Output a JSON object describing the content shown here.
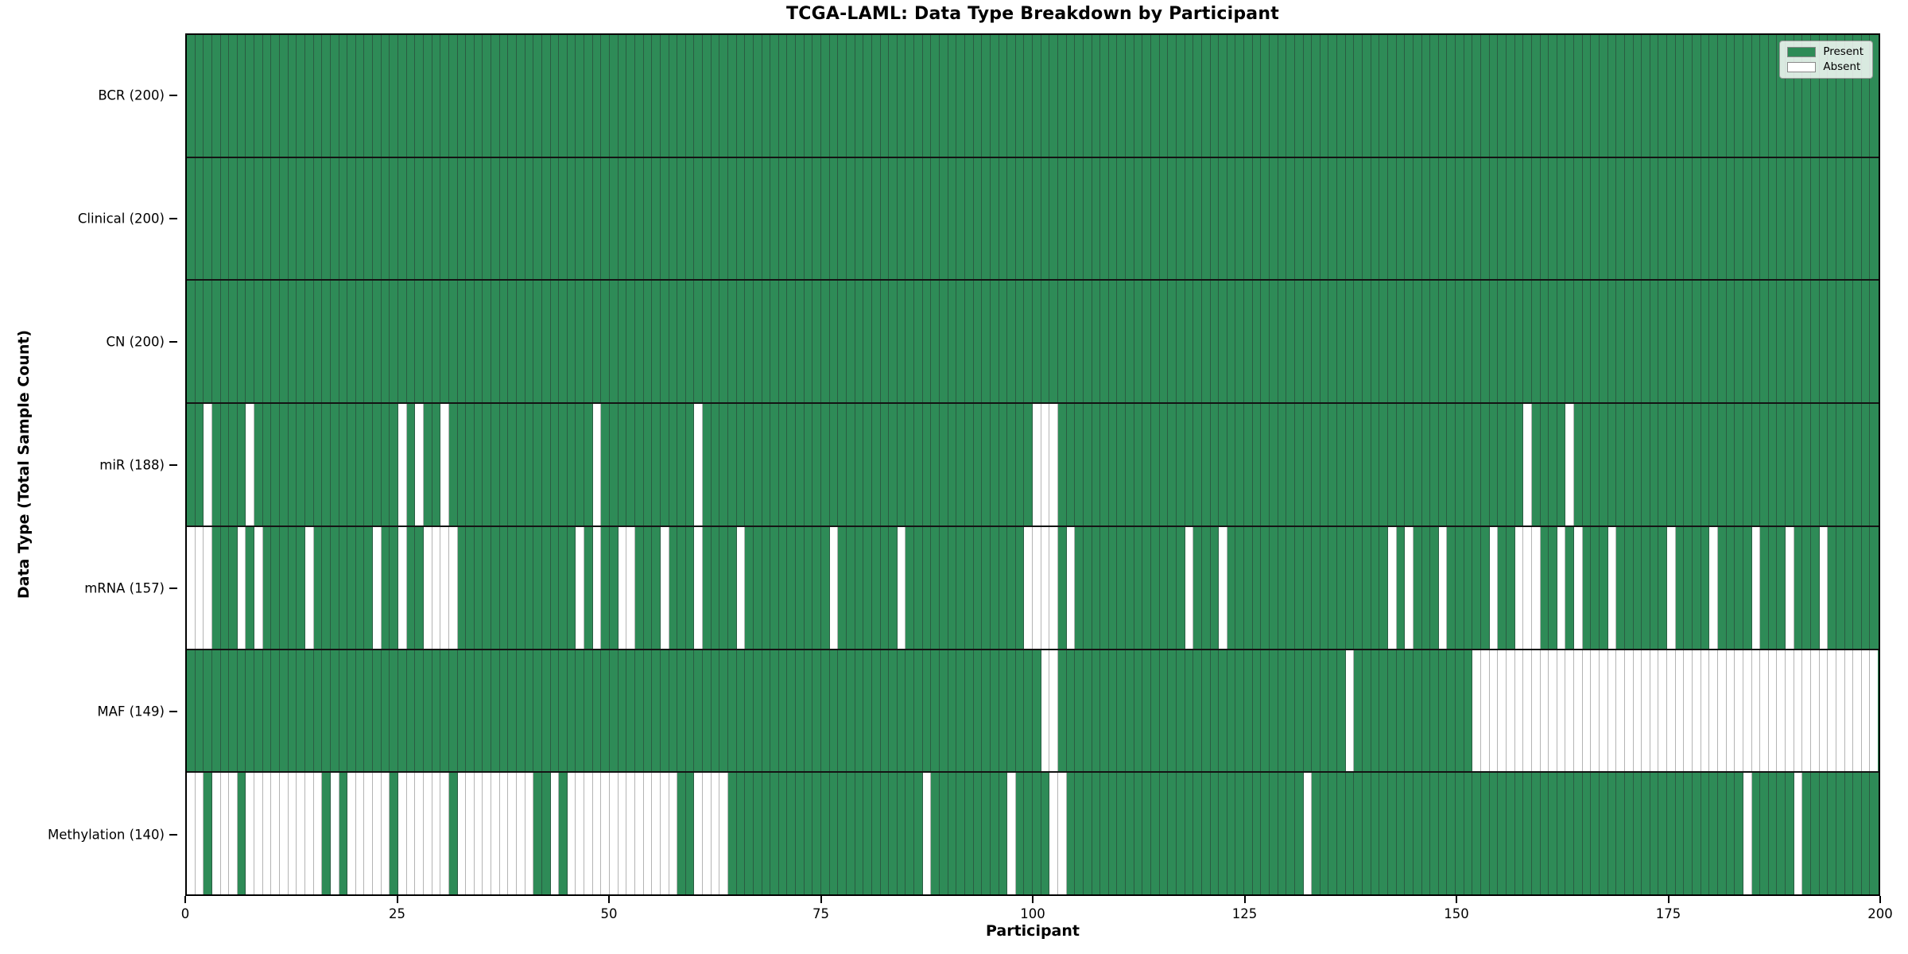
{
  "figure": {
    "title": "TCGA-LAML: Data Type Breakdown by Participant",
    "xlabel": "Participant",
    "ylabel": "Data Type (Total Sample Count)"
  },
  "legend": {
    "entries": [
      {
        "label": "Present",
        "color": "#2e8b57"
      },
      {
        "label": "Absent",
        "color": "#ffffff"
      }
    ]
  },
  "colors": {
    "present": "#2e8b57",
    "absent": "#ffffff",
    "edge_present": "#2a5c42",
    "edge_absent": "#b4b4b4",
    "row_divider": "#141414",
    "plot_border": "#000000"
  },
  "x_axis": {
    "tick_values": [
      0,
      25,
      50,
      75,
      100,
      125,
      150,
      175,
      200
    ],
    "range": [
      0,
      200
    ]
  },
  "chart_data": {
    "type": "heatmap",
    "title": "TCGA-LAML: Data Type Breakdown by Participant",
    "xlabel": "Participant",
    "ylabel": "Data Type (Total Sample Count)",
    "n_participants": 200,
    "x_range": [
      0,
      200
    ],
    "legend_position": "upper right",
    "grid": false,
    "rows": [
      {
        "label": "BCR (200)",
        "present_count": 200,
        "absent_participants": []
      },
      {
        "label": "Clinical (200)",
        "present_count": 200,
        "absent_participants": []
      },
      {
        "label": "CN (200)",
        "present_count": 200,
        "absent_participants": []
      },
      {
        "label": "miR (188)",
        "present_count": 188,
        "absent_participants": [
          2,
          7,
          25,
          27,
          30,
          48,
          60,
          100,
          101,
          102,
          158,
          163
        ]
      },
      {
        "label": "mRNA (157)",
        "present_count": 157,
        "absent_participants": [
          0,
          1,
          2,
          6,
          8,
          14,
          22,
          25,
          28,
          29,
          30,
          31,
          46,
          48,
          51,
          52,
          56,
          60,
          65,
          76,
          84,
          99,
          100,
          101,
          102,
          104,
          118,
          122,
          142,
          144,
          148,
          154,
          157,
          158,
          159,
          162,
          164,
          168,
          175,
          180,
          185,
          189,
          193
        ]
      },
      {
        "label": "MAF (149)",
        "present_count": 149,
        "absent_participants": [
          101,
          102,
          137,
          152,
          153,
          154,
          155,
          156,
          157,
          158,
          159,
          160,
          161,
          162,
          163,
          164,
          165,
          166,
          167,
          168,
          169,
          170,
          171,
          172,
          173,
          174,
          175,
          176,
          177,
          178,
          179,
          180,
          181,
          182,
          183,
          184,
          185,
          186,
          187,
          188,
          189,
          190,
          191,
          192,
          193,
          194,
          195,
          196,
          197,
          198,
          199
        ]
      },
      {
        "label": "Methylation (140)",
        "present_count": 140,
        "absent_participants": [
          0,
          1,
          3,
          4,
          5,
          7,
          8,
          9,
          10,
          11,
          12,
          13,
          14,
          15,
          17,
          19,
          20,
          21,
          22,
          23,
          25,
          26,
          27,
          28,
          29,
          30,
          32,
          33,
          34,
          35,
          36,
          37,
          38,
          39,
          40,
          43,
          45,
          46,
          47,
          48,
          49,
          50,
          51,
          52,
          53,
          54,
          55,
          56,
          57,
          60,
          61,
          62,
          63,
          87,
          97,
          102,
          103,
          132,
          184,
          190
        ]
      }
    ]
  }
}
